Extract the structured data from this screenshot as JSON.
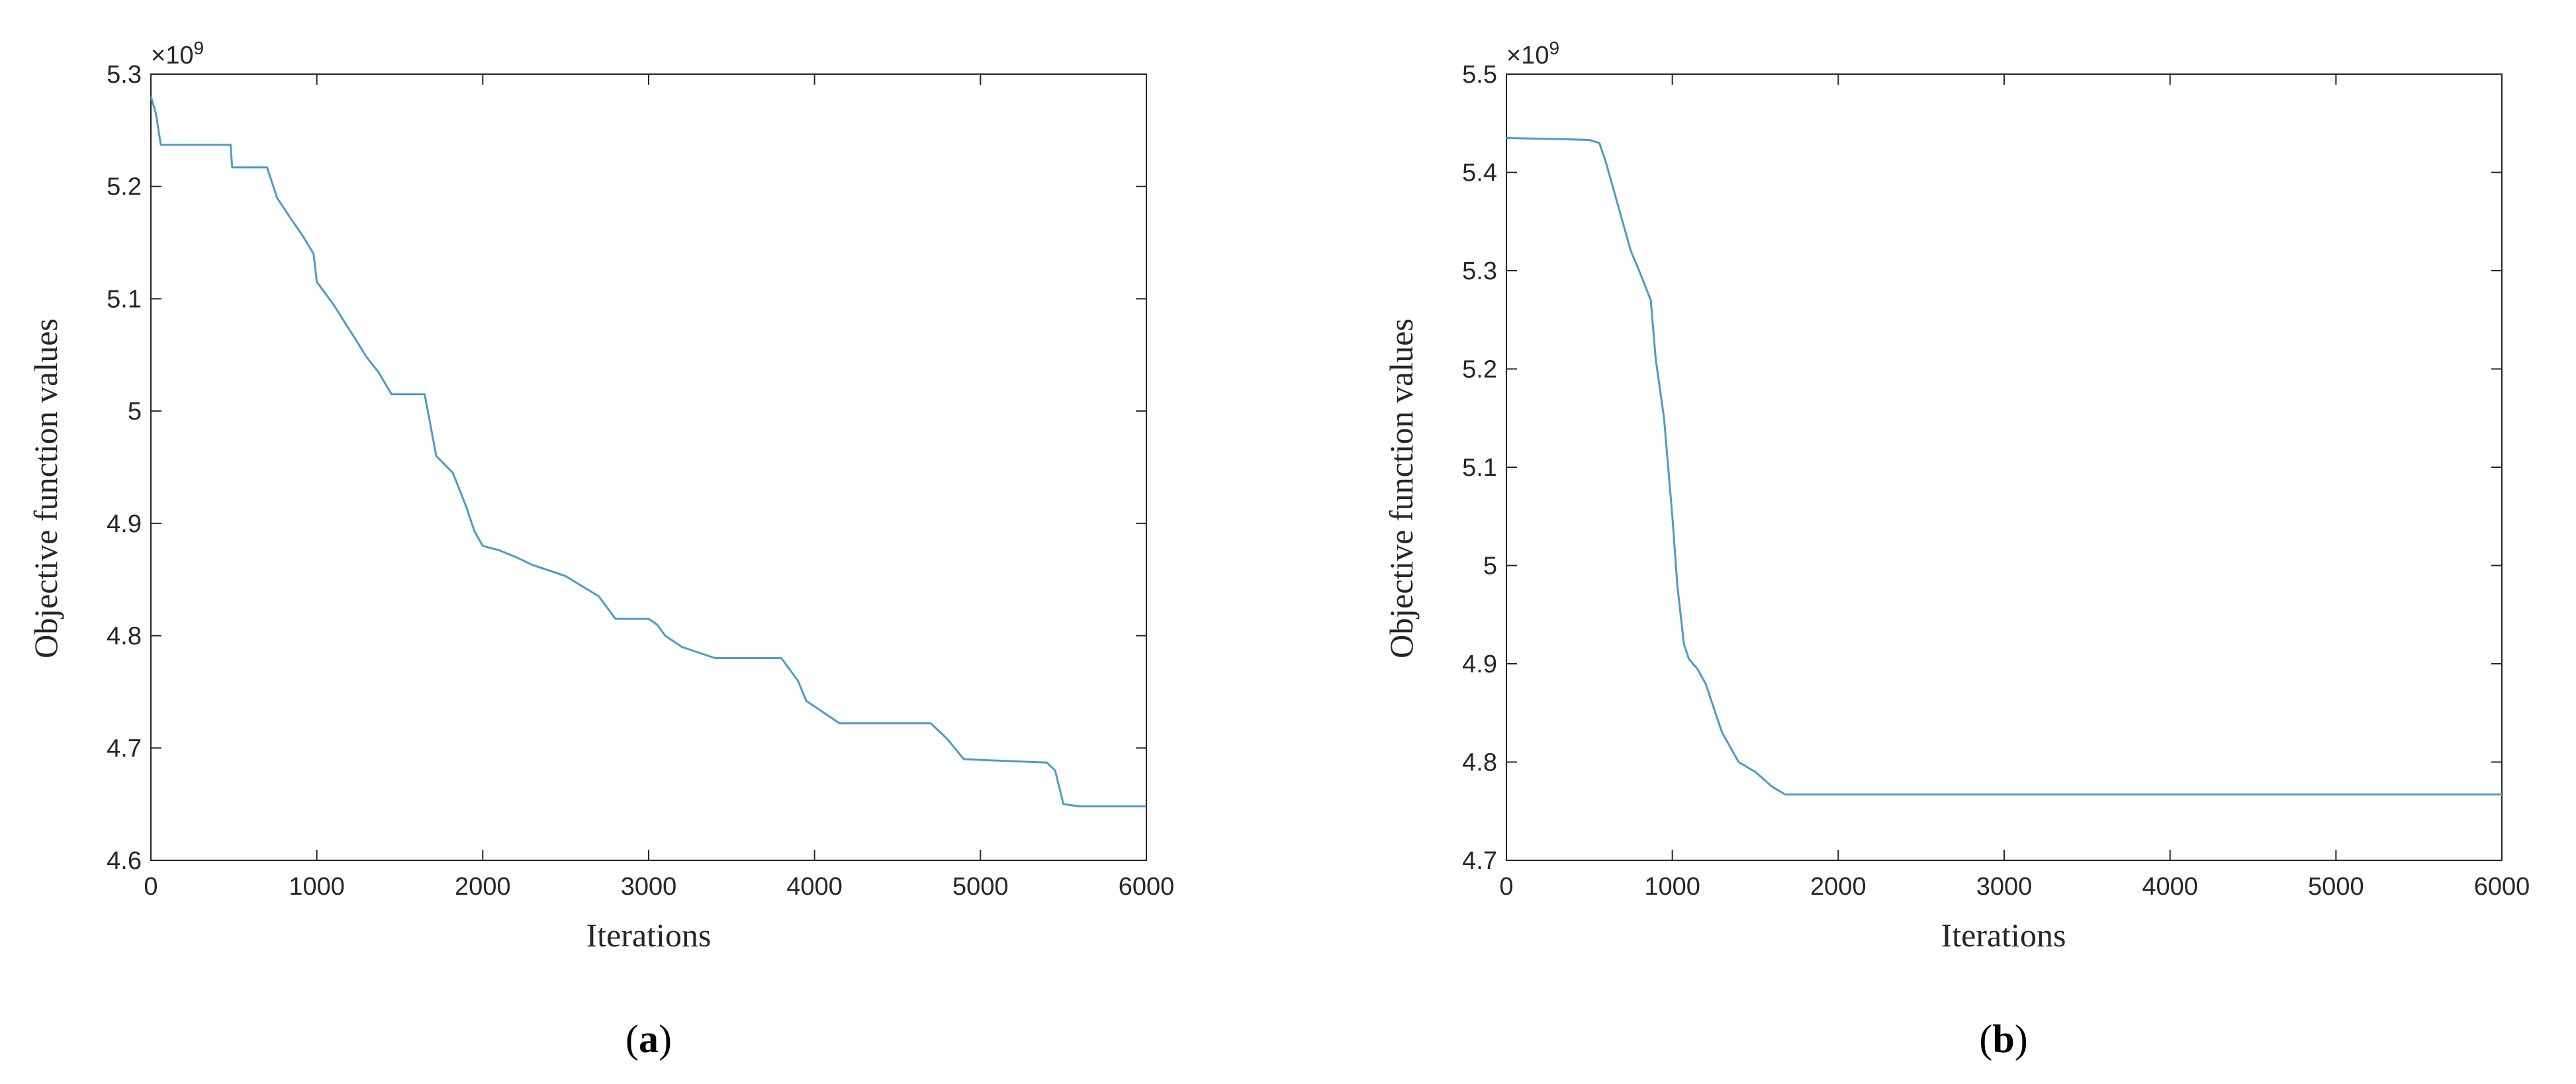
{
  "panels": [
    {
      "label": "(a)",
      "label_parts": {
        "open": "(",
        "letter": "a",
        "close": ")"
      }
    },
    {
      "label": "(b)",
      "label_parts": {
        "open": "(",
        "letter": "b",
        "close": ")"
      }
    }
  ],
  "chart_data": [
    {
      "type": "line",
      "title": "",
      "xlabel": "Iterations",
      "ylabel": "Objective function values",
      "y_exponent_label": "×10",
      "y_exponent_power": "9",
      "xlim": [
        0,
        6000
      ],
      "ylim": [
        4.6,
        5.3
      ],
      "xticks": [
        0,
        1000,
        2000,
        3000,
        4000,
        5000,
        6000
      ],
      "xtick_labels": [
        "0",
        "1000",
        "2000",
        "3000",
        "4000",
        "5000",
        "6000"
      ],
      "yticks": [
        4.6,
        4.7,
        4.8,
        4.9,
        5.0,
        5.1,
        5.2,
        5.3
      ],
      "ytick_labels": [
        "4.6",
        "4.7",
        "4.8",
        "4.9",
        "5",
        "5.1",
        "5.2",
        "5.3"
      ],
      "grid": false,
      "line_color": "#4d9cc5",
      "series": [
        {
          "x": [
            0,
            30,
            60,
            480,
            490,
            700,
            760,
            840,
            920,
            980,
            1000,
            1100,
            1250,
            1300,
            1370,
            1450,
            1650,
            1720,
            1820,
            1900,
            1950,
            2000,
            2100,
            2200,
            2300,
            2500,
            2700,
            2800,
            3000,
            3050,
            3100,
            3200,
            3400,
            3800,
            3900,
            3950,
            4050,
            4150,
            4700,
            4800,
            4900,
            5400,
            5450,
            5500,
            5600,
            6000
          ],
          "y": [
            5.28,
            5.265,
            5.237,
            5.237,
            5.217,
            5.217,
            5.19,
            5.172,
            5.155,
            5.14,
            5.115,
            5.095,
            5.06,
            5.048,
            5.035,
            5.015,
            5.015,
            4.96,
            4.945,
            4.915,
            4.893,
            4.88,
            4.876,
            4.87,
            4.863,
            4.853,
            4.835,
            4.815,
            4.815,
            4.81,
            4.8,
            4.79,
            4.78,
            4.78,
            4.76,
            4.742,
            4.732,
            4.722,
            4.722,
            4.708,
            4.69,
            4.687,
            4.68,
            4.65,
            4.648,
            4.648
          ]
        }
      ]
    },
    {
      "type": "line",
      "title": "",
      "xlabel": "Iterations",
      "ylabel": "Objective function values",
      "y_exponent_label": "×10",
      "y_exponent_power": "9",
      "xlim": [
        0,
        6000
      ],
      "ylim": [
        4.7,
        5.5
      ],
      "xticks": [
        0,
        1000,
        2000,
        3000,
        4000,
        5000,
        6000
      ],
      "xtick_labels": [
        "0",
        "1000",
        "2000",
        "3000",
        "4000",
        "5000",
        "6000"
      ],
      "yticks": [
        4.7,
        4.8,
        4.9,
        5.0,
        5.1,
        5.2,
        5.3,
        5.4,
        5.5
      ],
      "ytick_labels": [
        "4.7",
        "4.8",
        "4.9",
        "5",
        "5.1",
        "5.2",
        "5.3",
        "5.4",
        "5.5"
      ],
      "grid": false,
      "line_color": "#4d9cc5",
      "series": [
        {
          "x": [
            0,
            300,
            500,
            560,
            600,
            650,
            700,
            750,
            800,
            870,
            900,
            950,
            1000,
            1030,
            1070,
            1100,
            1150,
            1200,
            1250,
            1300,
            1350,
            1400,
            1500,
            1600,
            1680,
            6000
          ],
          "y": [
            5.435,
            5.434,
            5.433,
            5.43,
            5.41,
            5.38,
            5.35,
            5.32,
            5.3,
            5.27,
            5.21,
            5.15,
            5.05,
            4.98,
            4.92,
            4.905,
            4.895,
            4.88,
            4.855,
            4.83,
            4.815,
            4.8,
            4.79,
            4.775,
            4.767,
            4.767
          ]
        }
      ]
    }
  ]
}
